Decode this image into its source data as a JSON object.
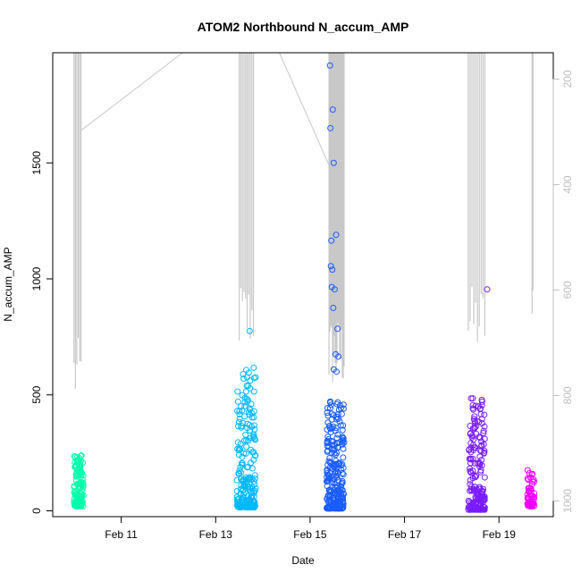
{
  "chart_data": {
    "type": "scatter",
    "title": "ATOM2 Northbound N_accum_AMP",
    "xlabel": "Date",
    "ylabel": "N_accum_AMP",
    "x_tick_labels": [
      "Feb 11",
      "Feb 13",
      "Feb 15",
      "Feb 17",
      "Feb 19"
    ],
    "x_tick_days": [
      11,
      13,
      15,
      17,
      19
    ],
    "xlim_days": [
      9.55,
      20.15
    ],
    "ylim": [
      -25,
      1975
    ],
    "y_ticks": [
      0,
      500,
      1000,
      1500
    ],
    "y2_ticks": [
      200,
      400,
      600,
      800,
      1000
    ],
    "y2_lim_reversed": [
      150,
      1030
    ],
    "y2_note": "secondary axis on right, reversed, grey",
    "colors": {
      "grey_line": "#c8c8c8",
      "axis": "#000000",
      "right_axis": "#bdbdbd"
    },
    "point_series": [
      {
        "x_range": [
          10.0,
          10.2
        ],
        "y_range": [
          20,
          240
        ],
        "count": 140,
        "color": "#00ffaa"
      },
      {
        "x_range": [
          13.45,
          13.85
        ],
        "y_range": [
          15,
          620
        ],
        "count": 210,
        "color": "#00b8ff",
        "outliers": [
          [
            13.72,
            775
          ]
        ]
      },
      {
        "x_range": [
          15.35,
          15.72
        ],
        "y_range": [
          10,
          500
        ],
        "count": 260,
        "color": "#1a5cff",
        "outliers": [
          [
            15.42,
            1920
          ],
          [
            15.48,
            1730
          ],
          [
            15.43,
            1650
          ],
          [
            15.5,
            1500
          ],
          [
            15.45,
            1165
          ],
          [
            15.55,
            1190
          ],
          [
            15.44,
            1055
          ],
          [
            15.47,
            1040
          ],
          [
            15.46,
            965
          ],
          [
            15.52,
            955
          ],
          [
            15.49,
            875
          ],
          [
            15.58,
            785
          ],
          [
            15.54,
            675
          ],
          [
            15.6,
            665
          ],
          [
            15.5,
            610
          ],
          [
            15.56,
            600
          ]
        ]
      },
      {
        "x_range": [
          18.35,
          18.7
        ],
        "y_range": [
          5,
          490
        ],
        "count": 200,
        "color": "#7a1cff",
        "outliers": [
          [
            18.75,
            955
          ]
        ]
      },
      {
        "x_range": [
          19.6,
          19.75
        ],
        "y_range": [
          20,
          180
        ],
        "count": 60,
        "color": "#ee00ff"
      }
    ],
    "line_series": {
      "name": "",
      "color": "#c8c8c8",
      "segments": [
        {
          "x_range": [
            10.0,
            10.15
          ],
          "y2_bottom": 830,
          "note": "vertical traces"
        },
        {
          "x_range": [
            13.5,
            13.8
          ],
          "y2_bottom": 720
        },
        {
          "x_range": [
            15.4,
            15.72
          ],
          "y2_bottom": 790
        },
        {
          "x_range": [
            18.35,
            18.7
          ],
          "y2_bottom": 730
        },
        {
          "x_range": [
            19.7,
            19.72
          ],
          "y2_bottom": 720
        }
      ]
    }
  }
}
